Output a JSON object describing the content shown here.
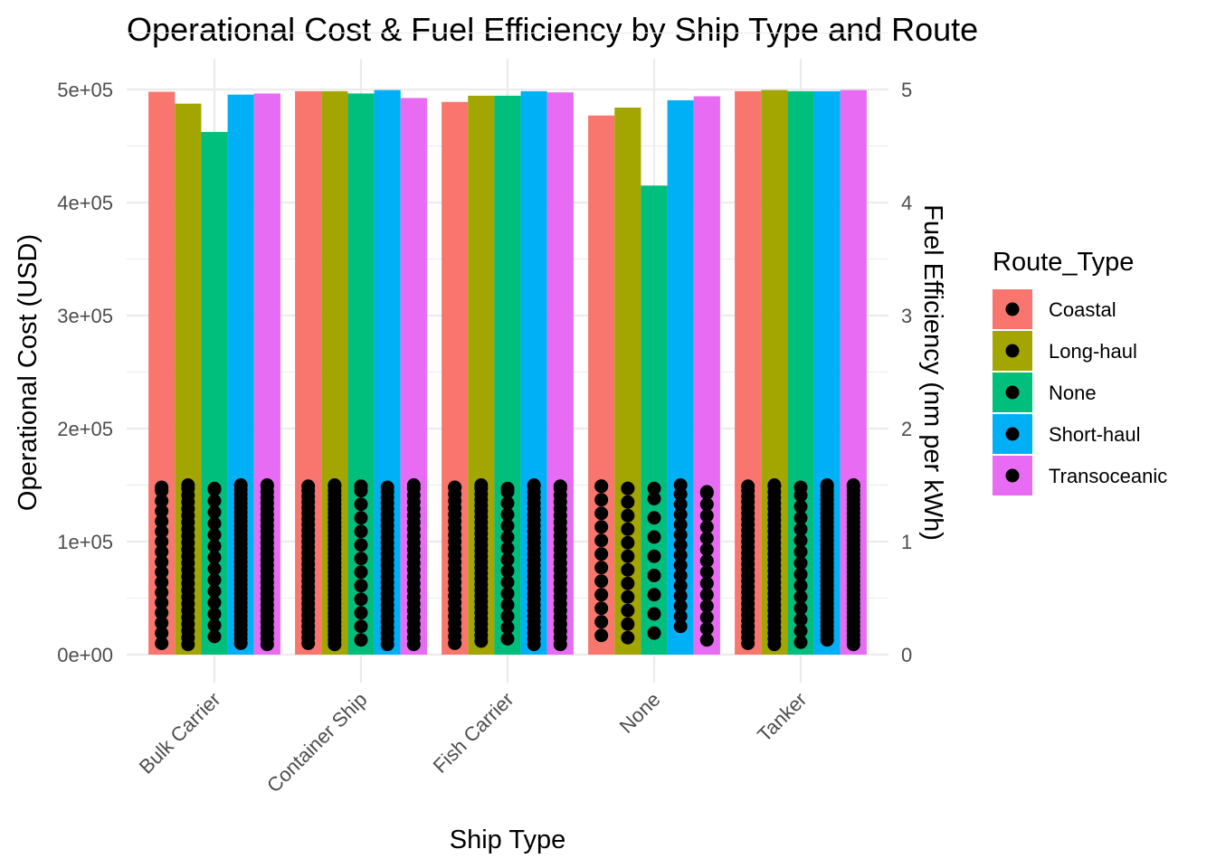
{
  "chart_data": {
    "type": "bar",
    "title": "Operational Cost & Fuel Efficiency by Ship Type and Route",
    "xlabel": "Ship Type",
    "ylabel": "Operational Cost (USD)",
    "ylabel_right": "Fuel Efficiency (nm per kWh)",
    "ylim": [
      0,
      500000
    ],
    "ylim_right": [
      0,
      5
    ],
    "y_ticks": [
      "0e+00",
      "1e+05",
      "2e+05",
      "3e+05",
      "4e+05",
      "5e+05"
    ],
    "y_ticks_right": [
      "0",
      "1",
      "2",
      "3",
      "4",
      "5"
    ],
    "grid": true,
    "legend_position": "right",
    "legend_title": "Route_Type",
    "categories": [
      "Bulk Carrier",
      "Container Ship",
      "Fish Carrier",
      "None",
      "Tanker"
    ],
    "series": [
      {
        "name": "Coastal",
        "color": "#F8766D",
        "values": [
          498000,
          498500,
          489000,
          477000,
          498500
        ]
      },
      {
        "name": "Long-haul",
        "color": "#A3A500",
        "values": [
          487500,
          498500,
          494500,
          484000,
          499500
        ]
      },
      {
        "name": "None",
        "color": "#00BF7D",
        "values": [
          462500,
          496500,
          494500,
          415000,
          498500
        ]
      },
      {
        "name": "Short-haul",
        "color": "#00B0F6",
        "values": [
          495500,
          499500,
          498500,
          490500,
          498500
        ]
      },
      {
        "name": "Transoceanic",
        "color": "#E76BF3",
        "values": [
          496500,
          492500,
          497500,
          494000,
          499500
        ]
      }
    ],
    "points_layer": {
      "description_axis": "right",
      "color": "#000000",
      "ranges": [
        [
          [
            0.1,
            1.48,
            0.09
          ],
          [
            0.09,
            1.5,
            0.06
          ],
          [
            0.16,
            1.47,
            0.1
          ],
          [
            0.1,
            1.5,
            0.04
          ],
          [
            0.09,
            1.5,
            0.05
          ]
        ],
        [
          [
            0.1,
            1.49,
            0.05
          ],
          [
            0.09,
            1.5,
            0.04
          ],
          [
            0.13,
            1.49,
            0.12
          ],
          [
            0.09,
            1.48,
            0.05
          ],
          [
            0.09,
            1.5,
            0.06
          ]
        ],
        [
          [
            0.1,
            1.48,
            0.06
          ],
          [
            0.12,
            1.5,
            0.05
          ],
          [
            0.14,
            1.47,
            0.1
          ],
          [
            0.09,
            1.5,
            0.05
          ],
          [
            0.09,
            1.49,
            0.06
          ]
        ],
        [
          [
            0.17,
            1.49,
            0.12
          ],
          [
            0.15,
            1.47,
            0.12
          ],
          [
            0.19,
            1.47,
            0.17
          ],
          [
            0.25,
            1.5,
            0.09
          ],
          [
            0.13,
            1.44,
            0.1
          ]
        ],
        [
          [
            0.1,
            1.49,
            0.05
          ],
          [
            0.09,
            1.5,
            0.05
          ],
          [
            0.11,
            1.48,
            0.1
          ],
          [
            0.13,
            1.5,
            0.04
          ],
          [
            0.09,
            1.5,
            0.04
          ]
        ]
      ]
    }
  }
}
